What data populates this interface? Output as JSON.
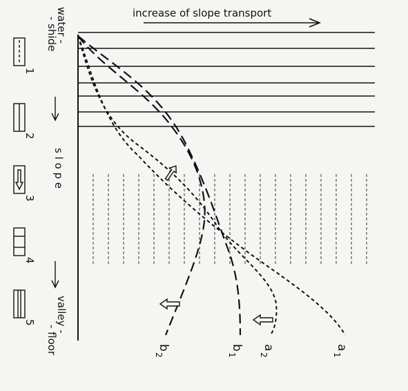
{
  "top_label": "increase of slope transport",
  "axis": {
    "top_line1": "water -",
    "top_line2": "- shide",
    "middle": "s l o p e",
    "bottom_line1": "valley -",
    "bottom_line2": "- floor"
  },
  "legend": [
    {
      "key": "1",
      "pattern": "dashed-vertical"
    },
    {
      "key": "2",
      "pattern": "solid-vertical"
    },
    {
      "key": "3",
      "pattern": "arrow-down"
    },
    {
      "key": "4",
      "pattern": "box-lines"
    },
    {
      "key": "5",
      "pattern": "horizontal-lines"
    }
  ],
  "curves": [
    {
      "id": "b2",
      "letter": "b",
      "sub": "2",
      "style": "long-dash"
    },
    {
      "id": "b1",
      "letter": "b",
      "sub": "1",
      "style": "long-dash"
    },
    {
      "id": "a2",
      "letter": "a",
      "sub": "2",
      "style": "short-dash"
    },
    {
      "id": "a1",
      "letter": "a",
      "sub": "1",
      "style": "short-dash"
    }
  ]
}
